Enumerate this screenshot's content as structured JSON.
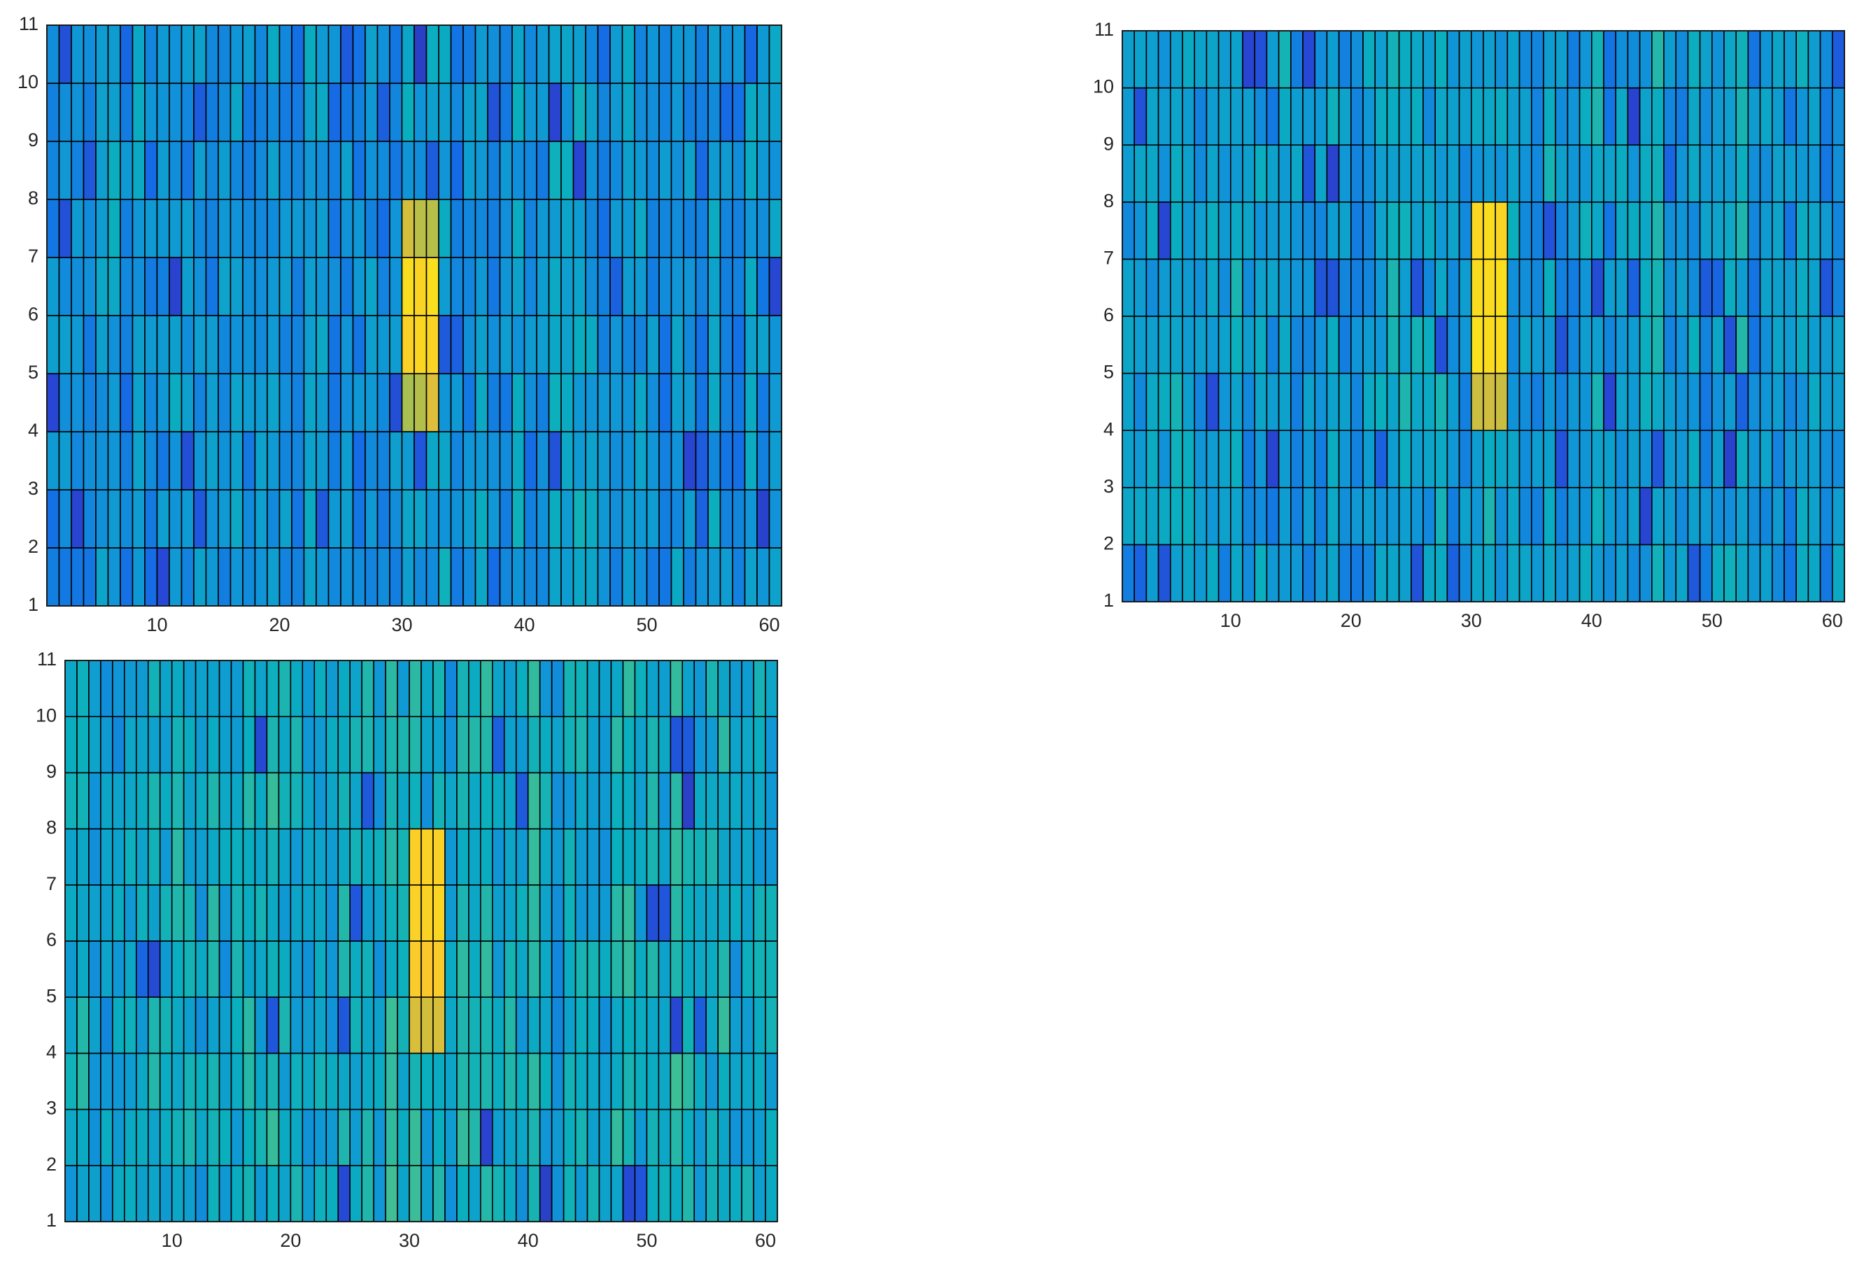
{
  "chart_data": [
    {
      "type": "heatmap",
      "panel": "top-left",
      "xlim": [
        1,
        61
      ],
      "ylim": [
        1,
        11
      ],
      "x_ticks": [
        10,
        20,
        30,
        40,
        50,
        60
      ],
      "y_ticks": [
        1,
        2,
        3,
        4,
        5,
        6,
        7,
        8,
        9,
        10,
        11
      ],
      "x_tick_labels": [
        "10",
        "20",
        "30",
        "40",
        "50",
        "60"
      ],
      "y_tick_labels": [
        "1",
        "2",
        "3",
        "4",
        "5",
        "6",
        "7",
        "8",
        "9",
        "10",
        "11"
      ],
      "columns": 60,
      "rows": 10,
      "colormap": "parula",
      "value_range": [
        0,
        1
      ],
      "seed": 11,
      "background_level": 0.34,
      "hotspot": {
        "col_start": 30,
        "col_end": 33,
        "row_start": 4,
        "row_end": 8,
        "peak_rows": [
          5,
          6
        ],
        "peak": 0.97,
        "edge": 0.8
      }
    },
    {
      "type": "heatmap",
      "panel": "top-right",
      "xlim": [
        1,
        61
      ],
      "ylim": [
        1,
        11
      ],
      "x_ticks": [
        10,
        20,
        30,
        40,
        50,
        60
      ],
      "y_ticks": [
        1,
        2,
        3,
        4,
        5,
        6,
        7,
        8,
        9,
        10,
        11
      ],
      "x_tick_labels": [
        "10",
        "20",
        "30",
        "40",
        "50",
        "60"
      ],
      "y_tick_labels": [
        "1",
        "2",
        "3",
        "4",
        "5",
        "6",
        "7",
        "8",
        "9",
        "10",
        "11"
      ],
      "columns": 60,
      "rows": 10,
      "colormap": "parula",
      "value_range": [
        0,
        1
      ],
      "seed": 23,
      "background_level": 0.38,
      "hotspot": {
        "col_start": 30,
        "col_end": 33,
        "row_start": 4,
        "row_end": 8,
        "peak_rows": [
          5,
          6,
          7
        ],
        "peak": 0.97,
        "edge": 0.78
      }
    },
    {
      "type": "heatmap",
      "panel": "bottom-left",
      "xlim": [
        1,
        61
      ],
      "ylim": [
        1,
        11
      ],
      "x_ticks": [
        10,
        20,
        30,
        40,
        50,
        60
      ],
      "y_ticks": [
        1,
        2,
        3,
        4,
        5,
        6,
        7,
        8,
        9,
        10,
        11
      ],
      "x_tick_labels": [
        "10",
        "20",
        "30",
        "40",
        "50",
        "60"
      ],
      "y_tick_labels": [
        "1",
        "2",
        "3",
        "4",
        "5",
        "6",
        "7",
        "8",
        "9",
        "10",
        "11"
      ],
      "columns": 60,
      "rows": 10,
      "colormap": "parula",
      "value_range": [
        0,
        1
      ],
      "seed": 37,
      "background_level": 0.44,
      "hotspot": {
        "col_start": 30,
        "col_end": 33,
        "row_start": 4,
        "row_end": 8,
        "peak_rows": [
          5,
          6,
          7
        ],
        "peak": 0.95,
        "edge": 0.8
      }
    }
  ]
}
